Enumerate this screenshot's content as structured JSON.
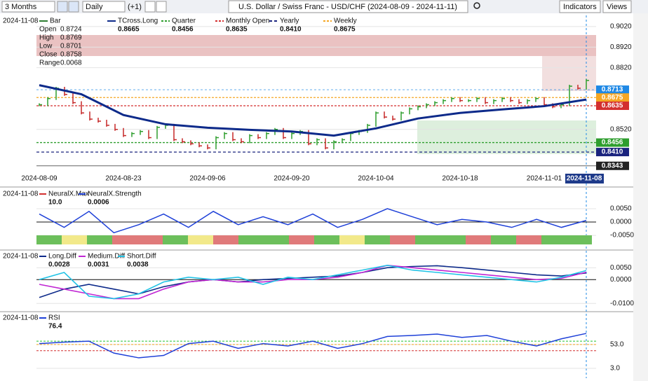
{
  "toolbar": {
    "period": "3 Months",
    "interval": "Daily",
    "offset": "(+1)",
    "title": "U.S. Dollar / Swiss Franc - USD/CHF (2024-08-09 - 2024-11-11)",
    "indicators": "Indicators",
    "views": "Views"
  },
  "current_date": "2024-11-08",
  "price_panel": {
    "legend": [
      {
        "name": "Bar",
        "color": "#2e7d32"
      },
      {
        "name": "TCross.Long",
        "value": 0.8665,
        "color": "#0d2a8a"
      },
      {
        "name": "Quarter",
        "value": 0.8456,
        "color": "#2e9e2e"
      },
      {
        "name": "Monthly Open",
        "value": 0.8635,
        "color": "#d32f2f"
      },
      {
        "name": "Yearly",
        "value": 0.841,
        "value_label": "0.8410",
        "color": "#1a237e"
      },
      {
        "name": "Weekly",
        "value": 0.8675,
        "color": "#f5a623"
      }
    ],
    "ohlc": [
      {
        "name": "Open",
        "value": 0.8724
      },
      {
        "name": "High",
        "value": 0.8769
      },
      {
        "name": "Low",
        "value": 0.8701
      },
      {
        "name": "Close",
        "value": 0.8758
      },
      {
        "name": "Range",
        "value": 0.0068
      }
    ],
    "ylim": [
      0.8315,
      0.9074
    ],
    "yticks": [
      {
        "value": 0.902,
        "label": "0.9020"
      },
      {
        "value": 0.892,
        "label": "0.8920"
      },
      {
        "value": 0.882,
        "label": "0.8820"
      },
      {
        "value": 0.852,
        "label": "0.8520"
      }
    ],
    "xticks": [
      "2024-08-09",
      "2024-08-23",
      "2024-09-06",
      "2024-09-20",
      "2024-10-04",
      "2024-10-18",
      "2024-11-01"
    ],
    "extra_tags": [
      {
        "value": 0.8713,
        "color": "#1e88e5"
      },
      {
        "value": 0.8343,
        "color": "#222"
      }
    ],
    "closes": [
      0.864,
      0.867,
      0.872,
      0.869,
      0.865,
      0.86,
      0.857,
      0.856,
      0.854,
      0.852,
      0.849,
      0.85,
      0.851,
      0.848,
      0.853,
      0.854,
      0.847,
      0.846,
      0.845,
      0.844,
      0.843,
      0.848,
      0.85,
      0.847,
      0.846,
      0.849,
      0.848,
      0.85,
      0.852,
      0.848,
      0.85,
      0.851,
      0.845,
      0.847,
      0.843,
      0.846,
      0.847,
      0.85,
      0.851,
      0.854,
      0.86,
      0.858,
      0.857,
      0.86,
      0.862,
      0.863,
      0.864,
      0.865,
      0.866,
      0.867,
      0.866,
      0.866,
      0.867,
      0.865,
      0.866,
      0.867,
      0.866,
      0.865,
      0.866,
      0.867,
      0.864,
      0.863,
      0.864,
      0.873,
      0.872,
      0.8758
    ],
    "tcross": [
      0.8735,
      0.8691,
      0.859,
      0.8545,
      0.8528,
      0.8518,
      0.851,
      0.849,
      0.8525,
      0.8573,
      0.86,
      0.8617,
      0.8633,
      0.8665
    ]
  },
  "neural_panel": {
    "legend": [
      {
        "name": "NeuralX.Max",
        "value": 10,
        "value_label": "10.0",
        "color": "#d32f2f"
      },
      {
        "name": "NeuralX.Strength",
        "value": 0.0006,
        "color": "#1e40d8"
      }
    ],
    "ylim": [
      -0.0055,
      0.0084
    ],
    "yticks": [
      {
        "value": 0.005,
        "label": "0.0050"
      },
      {
        "value": 0,
        "label": "0.0000"
      },
      {
        "value": -0.005,
        "label": "-0.0050"
      }
    ],
    "values": [
      0.003,
      -0.002,
      0.004,
      -0.004,
      -0.001,
      0.003,
      -0.002,
      0.004,
      -0.001,
      0.002,
      -0.001,
      0.003,
      -0.002,
      0.001,
      0.005,
      0.002,
      -0.001,
      0.001,
      0.0,
      -0.002,
      0.001,
      -0.002,
      0.0006
    ]
  },
  "diff_panel": {
    "ylim": [
      -0.012,
      0.008
    ],
    "yticks": [
      {
        "value": 0.005,
        "label": "0.0050"
      },
      {
        "value": 0,
        "label": "0.0000"
      },
      {
        "value": -0.01,
        "label": "-0.0100"
      }
    ],
    "series": [
      {
        "name": "Long.Diff",
        "value": 0.0028,
        "color": "#0d2a8a",
        "values": [
          -0.0075,
          -0.004,
          -0.002,
          -0.004,
          -0.006,
          -0.003,
          -0.001,
          0.0,
          -0.001,
          0.0,
          0.0005,
          0.001,
          0.0015,
          0.003,
          0.005,
          0.0055,
          0.0058,
          0.005,
          0.004,
          0.003,
          0.002,
          0.0015,
          0.0028
        ]
      },
      {
        "name": "Medium.Diff",
        "value": 0.0031,
        "color": "#c026d3",
        "values": [
          -0.002,
          -0.004,
          -0.006,
          -0.008,
          -0.008,
          -0.004,
          -0.001,
          0.0,
          -0.001,
          -0.001,
          0.0,
          0.0,
          0.001,
          0.003,
          0.006,
          0.005,
          0.004,
          0.003,
          0.002,
          0.001,
          0.0,
          0.0005,
          0.0031
        ]
      },
      {
        "name": "Short.Diff",
        "value": 0.0038,
        "color": "#22c3e6",
        "values": [
          0.0,
          0.003,
          -0.007,
          -0.008,
          -0.006,
          -0.001,
          0.001,
          0.0,
          0.001,
          -0.002,
          0.001,
          0.0,
          0.002,
          0.004,
          0.006,
          0.004,
          0.003,
          0.002,
          0.001,
          0.0,
          -0.001,
          0.001,
          0.0038
        ]
      }
    ]
  },
  "rsi_panel": {
    "legend": [
      {
        "name": "RSI",
        "value": 76.4,
        "color": "#1e40d8"
      }
    ],
    "ylim": [
      -9,
      103
    ],
    "yticks": [
      {
        "value": 53,
        "label": "53.0"
      },
      {
        "value": 3,
        "label": "3.0"
      }
    ],
    "levels": [
      {
        "value": 60,
        "color": "#22c32e"
      },
      {
        "value": 53,
        "color": "#f5a623"
      },
      {
        "value": 40,
        "color": "#d32f2f"
      }
    ],
    "values": [
      55,
      58,
      60,
      35,
      25,
      30,
      55,
      60,
      45,
      55,
      50,
      60,
      45,
      55,
      70,
      72,
      75,
      68,
      72,
      60,
      50,
      65,
      76.4
    ]
  }
}
